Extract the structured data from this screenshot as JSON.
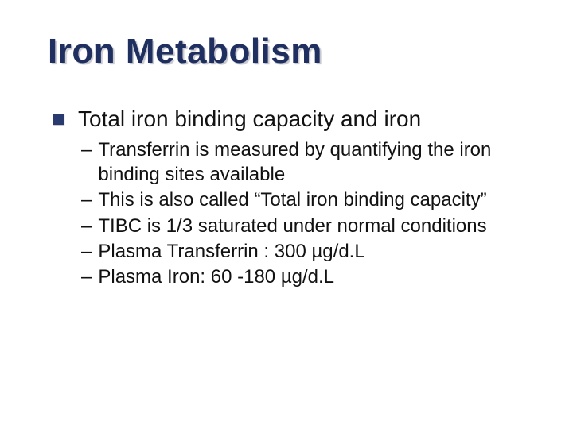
{
  "slide": {
    "title": "Iron Metabolism",
    "title_color": "#1f2f5f",
    "title_shadow": "#c8c8d0",
    "title_fontsize": 44,
    "bullet_color": "#283a6e",
    "background_color": "#ffffff",
    "text_color": "#111111",
    "level1_fontsize": 28,
    "level2_fontsize": 24,
    "level1": {
      "text": "Total iron binding capacity and iron"
    },
    "level2": {
      "items": [
        "Transferrin is measured by quantifying the iron binding sites available",
        "This is also called “Total iron binding capacity”",
        "TIBC is 1/3 saturated under normal conditions",
        "Plasma Transferrin : 300 µg/d.L",
        "Plasma Iron: 60 -180 µg/d.L"
      ]
    }
  }
}
